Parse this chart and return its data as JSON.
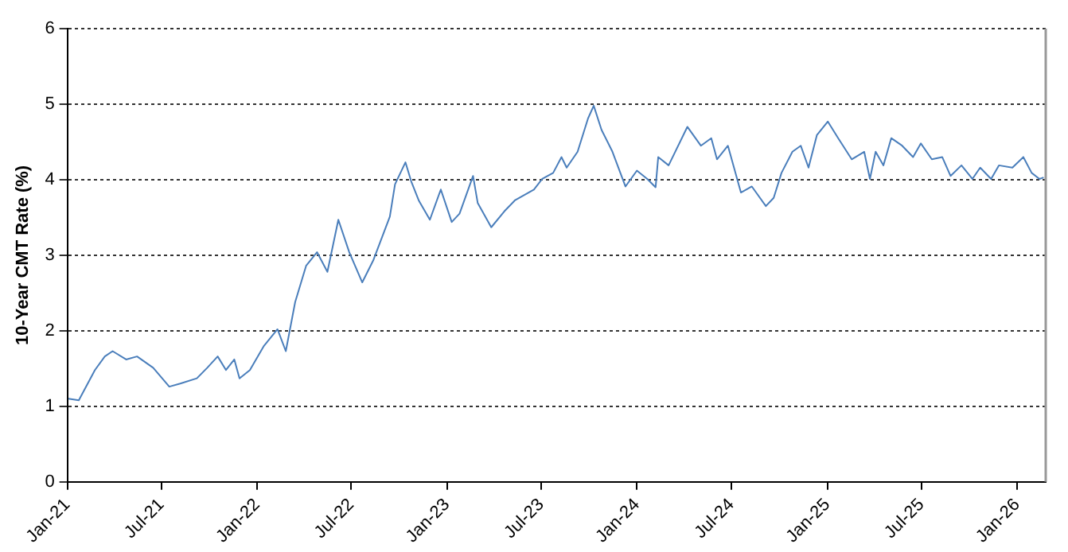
{
  "chart_data": {
    "type": "line",
    "ylabel": "10-Year CMT Rate (%)",
    "x": [
      "2021-01-03",
      "2021-01-23",
      "2021-02-23",
      "2021-03-14",
      "2021-03-29",
      "2021-04-24",
      "2021-05-15",
      "2021-06-15",
      "2021-07-16",
      "2021-08-06",
      "2021-09-07",
      "2021-09-27",
      "2021-10-17",
      "2021-11-02",
      "2021-11-18",
      "2021-11-28",
      "2021-12-18",
      "2022-01-14",
      "2022-02-09",
      "2022-02-25",
      "2022-03-15",
      "2022-04-05",
      "2022-04-26",
      "2022-05-16",
      "2022-06-06",
      "2022-06-27",
      "2022-07-22",
      "2022-08-12",
      "2022-09-13",
      "2022-09-23",
      "2022-10-13",
      "2022-10-24",
      "2022-11-08",
      "2022-11-29",
      "2022-12-20",
      "2023-01-10",
      "2023-01-25",
      "2023-02-20",
      "2023-03-01",
      "2023-03-27",
      "2023-04-21",
      "2023-05-12",
      "2023-06-17",
      "2023-07-03",
      "2023-07-24",
      "2023-08-09",
      "2023-08-19",
      "2023-09-09",
      "2023-09-29",
      "2023-10-10",
      "2023-10-25",
      "2023-11-15",
      "2023-12-10",
      "2024-01-01",
      "2024-01-21",
      "2024-02-06",
      "2024-02-11",
      "2024-03-02",
      "2024-04-07",
      "2024-05-03",
      "2024-05-23",
      "2024-06-03",
      "2024-06-24",
      "2024-07-19",
      "2024-08-09",
      "2024-09-05",
      "2024-09-20",
      "2024-10-05",
      "2024-10-26",
      "2024-11-11",
      "2024-11-26",
      "2024-12-12",
      "2025-01-02",
      "2025-01-22",
      "2025-02-17",
      "2025-03-13",
      "2025-03-24",
      "2025-04-04",
      "2025-04-19",
      "2025-05-04",
      "2025-05-25",
      "2025-06-15",
      "2025-06-30",
      "2025-07-21",
      "2025-08-10",
      "2025-08-26",
      "2025-09-16",
      "2025-10-07",
      "2025-10-22",
      "2025-11-12",
      "2025-11-27",
      "2025-12-23",
      "2026-01-13",
      "2026-01-29",
      "2026-02-13",
      "2026-02-21"
    ],
    "series": [
      {
        "color": "#4a7ebb",
        "values": [
          1.1,
          1.08,
          1.48,
          1.66,
          1.73,
          1.62,
          1.66,
          1.51,
          1.26,
          1.3,
          1.37,
          1.51,
          1.66,
          1.48,
          1.62,
          1.37,
          1.48,
          1.8,
          2.02,
          1.73,
          2.38,
          2.86,
          3.04,
          2.78,
          3.47,
          3.04,
          2.64,
          2.93,
          3.51,
          3.94,
          4.23,
          3.98,
          3.72,
          3.47,
          3.87,
          3.44,
          3.55,
          4.05,
          3.69,
          3.37,
          3.58,
          3.73,
          3.87,
          4.01,
          4.09,
          4.3,
          4.16,
          4.37,
          4.81,
          4.98,
          4.66,
          4.37,
          3.91,
          4.12,
          4.01,
          3.9,
          4.3,
          4.19,
          4.7,
          4.45,
          4.55,
          4.27,
          4.45,
          3.83,
          3.91,
          3.65,
          3.76,
          4.09,
          4.37,
          4.45,
          4.16,
          4.59,
          4.77,
          4.55,
          4.27,
          4.37,
          4.01,
          4.37,
          4.19,
          4.55,
          4.45,
          4.3,
          4.48,
          4.27,
          4.3,
          4.05,
          4.19,
          4.01,
          4.16,
          4.01,
          4.19,
          4.16,
          4.3,
          4.09,
          4.01,
          4.03
        ]
      }
    ],
    "xlim": [
      "2021-01-01",
      "2026-02-25"
    ],
    "xticks": [
      {
        "value": "2021-01-01",
        "label": "Jan-21"
      },
      {
        "value": "2021-07-01",
        "label": "Jul-21"
      },
      {
        "value": "2022-01-01",
        "label": "Jan-22"
      },
      {
        "value": "2022-07-01",
        "label": "Jul-22"
      },
      {
        "value": "2023-01-01",
        "label": "Jan-23"
      },
      {
        "value": "2023-07-01",
        "label": "Jul-23"
      },
      {
        "value": "2024-01-01",
        "label": "Jan-24"
      },
      {
        "value": "2024-07-01",
        "label": "Jul-24"
      },
      {
        "value": "2025-01-01",
        "label": "Jan-25"
      },
      {
        "value": "2025-07-01",
        "label": "Jul-25"
      },
      {
        "value": "2026-01-01",
        "label": "Jan-26"
      }
    ],
    "ylim": [
      0,
      6
    ],
    "yticks": [
      0,
      1,
      2,
      3,
      4,
      5,
      6
    ],
    "grid": "y",
    "marker": "none",
    "line_style": "solid"
  }
}
